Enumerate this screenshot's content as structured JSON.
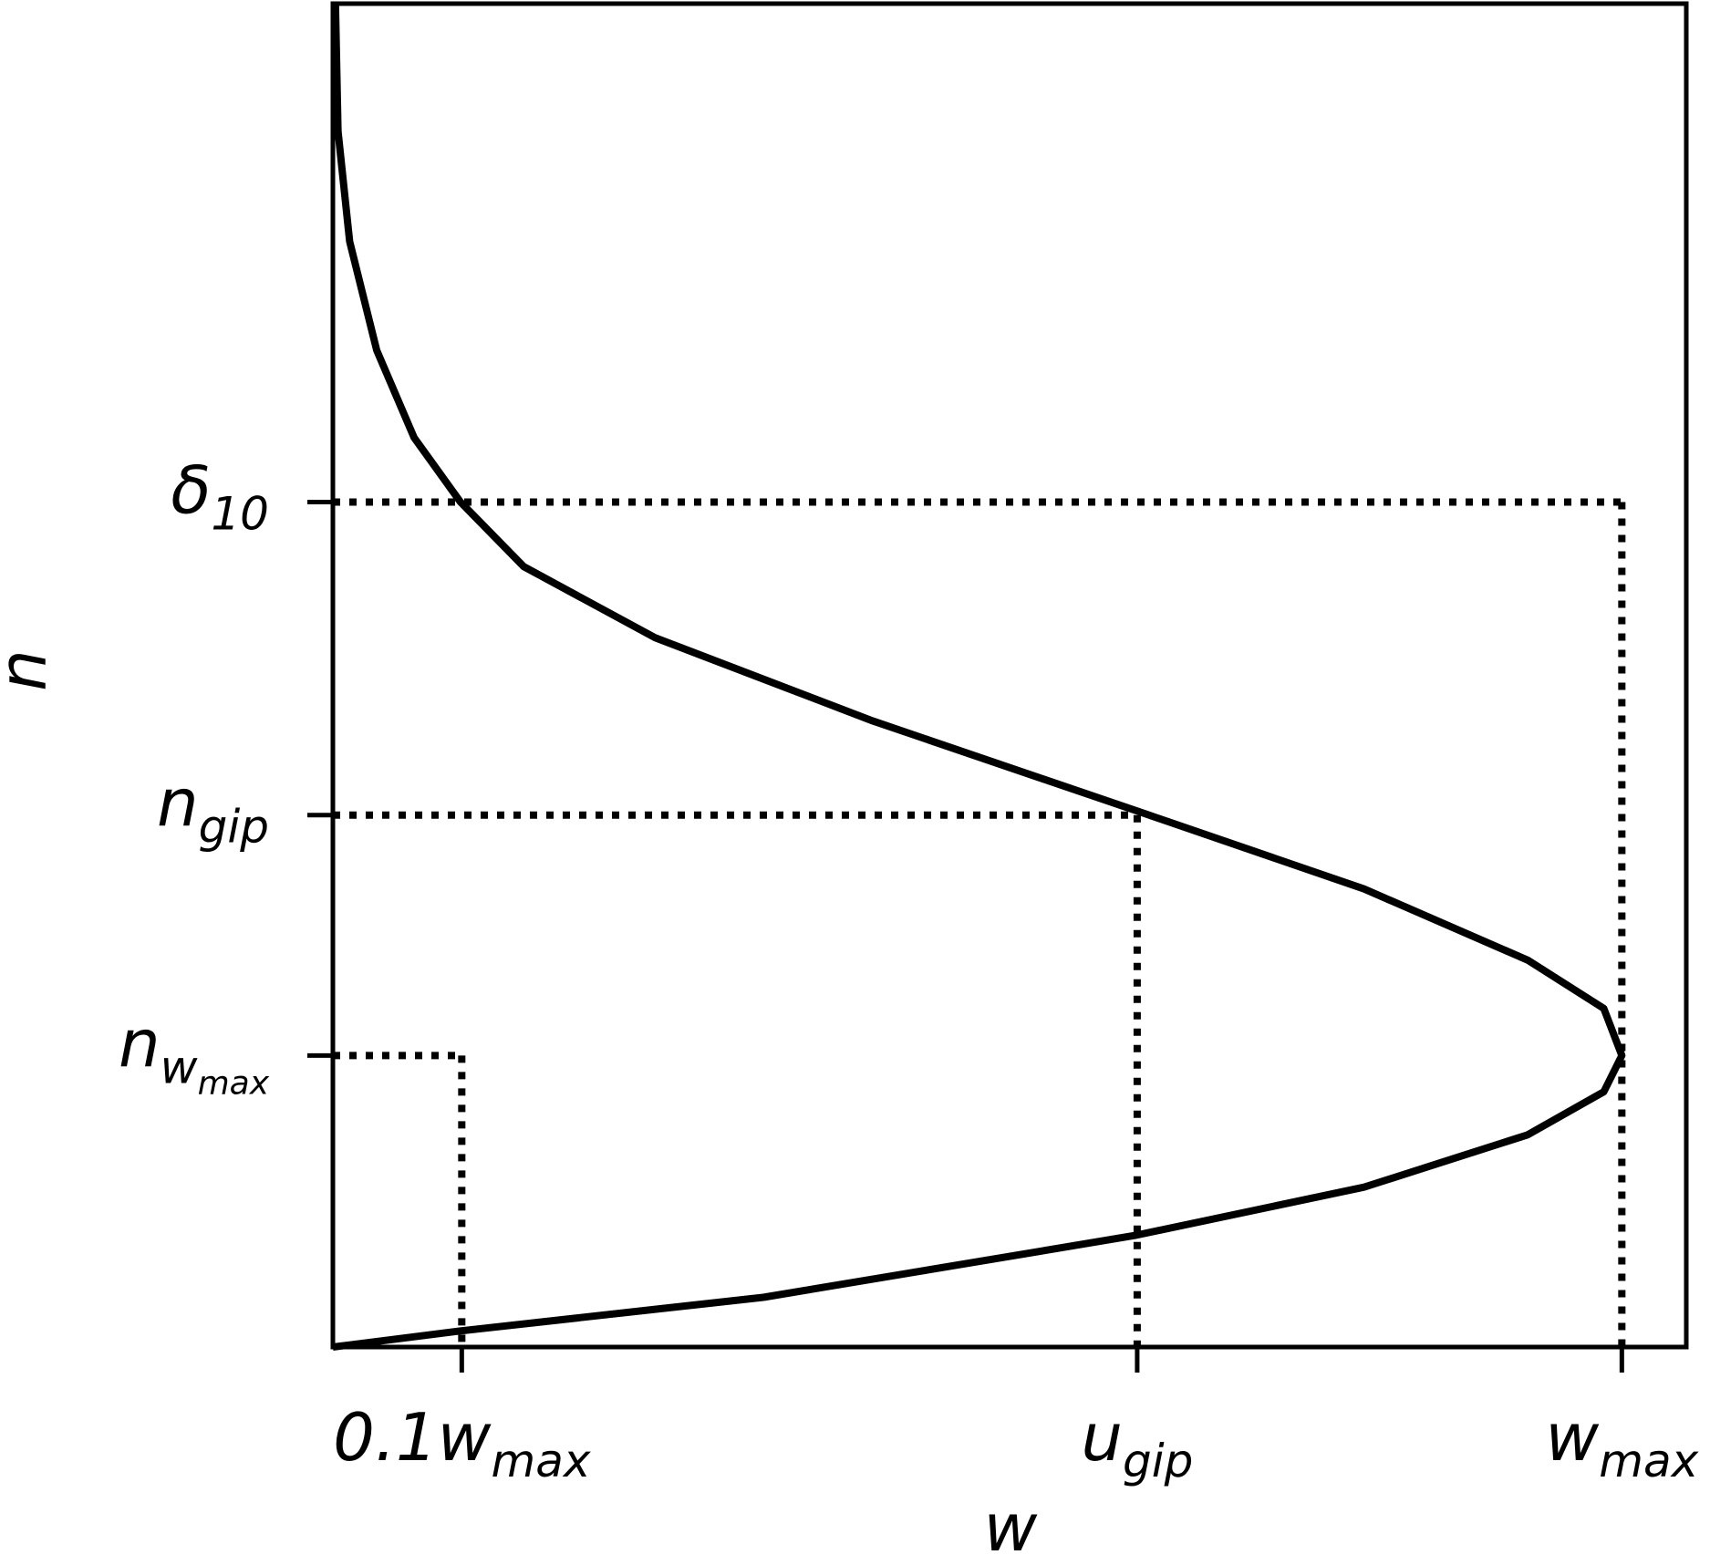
{
  "chart_data": {
    "type": "line",
    "xlabel": "w",
    "ylabel": "n",
    "xlim": [
      0,
      1.05
    ],
    "ylim": [
      0,
      1
    ],
    "xticks": [
      {
        "value": 0.1,
        "label": "0.1w",
        "sub": "max"
      },
      {
        "value": 0.624,
        "label": "u",
        "sub": "gip"
      },
      {
        "value": 1.0,
        "label": "w",
        "sub": "max"
      }
    ],
    "yticks": [
      {
        "value": 0.629,
        "label": "δ",
        "sub": "10"
      },
      {
        "value": 0.396,
        "label": "n",
        "sub": "gip"
      },
      {
        "value": 0.217,
        "label": "n",
        "sub": "w",
        "subsub": "max"
      }
    ],
    "series": [
      {
        "color": "#000000",
        "x": [
          0,
          0.099,
          0.334,
          0.622,
          0.8,
          0.927,
          0.986,
          1.0,
          0.986,
          0.927,
          0.8,
          0.624,
          0.419,
          0.25,
          0.148,
          0.099,
          0.063,
          0.034,
          0.013,
          0.004,
          0.002
        ],
        "values": [
          0,
          0.012,
          0.037,
          0.083,
          0.119,
          0.158,
          0.19,
          0.217,
          0.252,
          0.288,
          0.341,
          0.399,
          0.466,
          0.528,
          0.581,
          0.629,
          0.677,
          0.742,
          0.823,
          0.905,
          1.0
        ]
      }
    ],
    "grid": false
  }
}
